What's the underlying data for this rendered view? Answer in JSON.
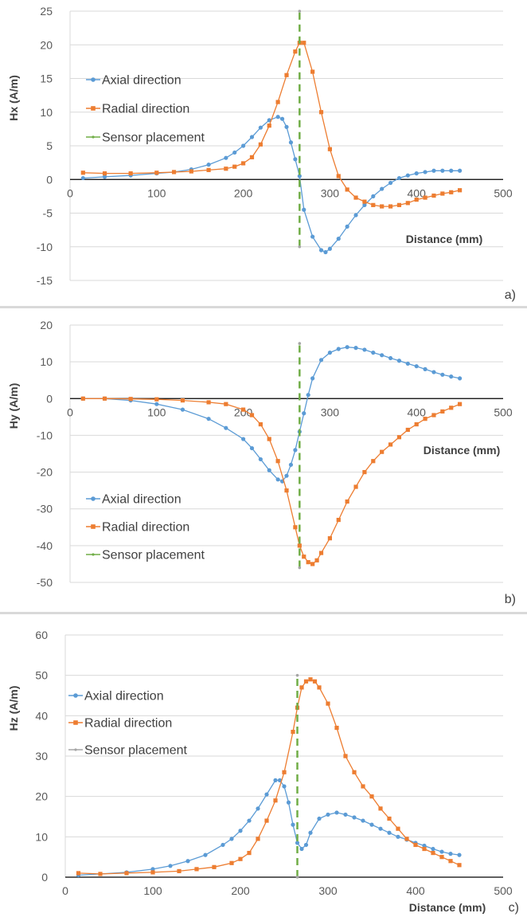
{
  "chart_data": [
    {
      "type": "line",
      "panel_label": "a)",
      "ylabel": "Hx (A/m)",
      "xlabel": "Distance (mm)",
      "xlim": [
        0,
        500
      ],
      "ylim": [
        -15,
        25
      ],
      "xticks": [
        0,
        100,
        200,
        300,
        400,
        500
      ],
      "yticks": [
        -15,
        -10,
        -5,
        0,
        5,
        10,
        15,
        20,
        25
      ],
      "grid": "horizontal",
      "legend": "left",
      "colors": {
        "axial": "#5b9bd5",
        "radial": "#ed7d31",
        "sensor": "#70ad47",
        "sensor_marker": "#a5a5a5"
      },
      "series": [
        {
          "name": "Axial direction",
          "marker": "circle",
          "x": [
            15,
            40,
            70,
            100,
            120,
            140,
            160,
            180,
            190,
            200,
            210,
            220,
            230,
            240,
            245,
            250,
            255,
            260,
            265,
            270,
            280,
            290,
            295,
            300,
            310,
            320,
            330,
            340,
            350,
            360,
            370,
            380,
            390,
            400,
            410,
            420,
            430,
            440,
            450
          ],
          "y": [
            0.2,
            0.4,
            0.6,
            0.9,
            1.1,
            1.5,
            2.2,
            3.2,
            4,
            5,
            6.3,
            7.7,
            8.8,
            9.3,
            9,
            7.8,
            5.5,
            3,
            0.5,
            -4.5,
            -8.5,
            -10.5,
            -10.8,
            -10.3,
            -8.8,
            -7,
            -5.3,
            -3.8,
            -2.5,
            -1.4,
            -0.5,
            0.2,
            0.6,
            0.9,
            1.1,
            1.3,
            1.3,
            1.3,
            1.3
          ]
        },
        {
          "name": "Radial direction",
          "marker": "square",
          "x": [
            15,
            40,
            70,
            100,
            120,
            140,
            160,
            180,
            190,
            200,
            210,
            220,
            230,
            240,
            250,
            260,
            265,
            270,
            280,
            290,
            300,
            310,
            320,
            330,
            340,
            350,
            360,
            370,
            380,
            390,
            400,
            410,
            420,
            430,
            440,
            450
          ],
          "y": [
            1,
            0.9,
            0.9,
            1,
            1.1,
            1.2,
            1.4,
            1.6,
            1.9,
            2.4,
            3.3,
            5.2,
            8,
            11.5,
            15.5,
            19,
            20.3,
            20.3,
            16,
            10,
            4.5,
            0.5,
            -1.5,
            -2.7,
            -3.3,
            -3.8,
            -4,
            -4,
            -3.8,
            -3.5,
            -3,
            -2.7,
            -2.4,
            -2.1,
            -1.9,
            -1.6
          ]
        },
        {
          "name": "Sensor placement",
          "style": "dashed-vertical",
          "x": [
            265,
            265
          ],
          "y": [
            -10,
            25
          ]
        }
      ]
    },
    {
      "type": "line",
      "panel_label": "b)",
      "ylabel": "Hy (A/m)",
      "xlabel": "Distance (mm)",
      "xlim": [
        0,
        500
      ],
      "ylim": [
        -50,
        20
      ],
      "xticks": [
        0,
        100,
        200,
        300,
        400,
        500
      ],
      "yticks": [
        -50,
        -40,
        -30,
        -20,
        -10,
        0,
        10,
        20
      ],
      "grid": "horizontal",
      "legend": "bottom-left",
      "colors": {
        "axial": "#5b9bd5",
        "radial": "#ed7d31",
        "sensor": "#70ad47",
        "sensor_marker": "#a5a5a5"
      },
      "series": [
        {
          "name": "Axial direction",
          "marker": "circle",
          "x": [
            15,
            40,
            70,
            100,
            130,
            160,
            180,
            200,
            210,
            220,
            230,
            240,
            245,
            250,
            255,
            260,
            265,
            270,
            275,
            280,
            290,
            300,
            310,
            320,
            330,
            340,
            350,
            360,
            370,
            380,
            390,
            400,
            410,
            420,
            430,
            440,
            450
          ],
          "y": [
            0,
            0,
            -0.5,
            -1.5,
            -3,
            -5.5,
            -8,
            -11,
            -13.5,
            -16.5,
            -19.5,
            -22,
            -22.5,
            -21,
            -18,
            -14,
            -9,
            -4,
            1,
            5.5,
            10.5,
            12.5,
            13.5,
            14,
            13.8,
            13.3,
            12.5,
            11.8,
            11,
            10.3,
            9.5,
            8.8,
            8,
            7.2,
            6.5,
            6,
            5.5
          ]
        },
        {
          "name": "Radial direction",
          "marker": "square",
          "x": [
            15,
            40,
            70,
            100,
            130,
            160,
            180,
            200,
            210,
            220,
            230,
            240,
            250,
            260,
            265,
            270,
            275,
            280,
            285,
            290,
            300,
            310,
            320,
            330,
            340,
            350,
            360,
            370,
            380,
            390,
            400,
            410,
            420,
            430,
            440,
            450
          ],
          "y": [
            0,
            0,
            -0.1,
            -0.2,
            -0.5,
            -1,
            -1.5,
            -3,
            -4.5,
            -7,
            -11,
            -17,
            -25,
            -35,
            -40,
            -43,
            -44.5,
            -45,
            -44,
            -42,
            -38,
            -33,
            -28,
            -24,
            -20,
            -17,
            -14.5,
            -12.5,
            -10.5,
            -8.5,
            -7,
            -5.5,
            -4.5,
            -3.5,
            -2.5,
            -1.5
          ]
        },
        {
          "name": "Sensor placement",
          "style": "dashed-vertical",
          "x": [
            265,
            265
          ],
          "y": [
            -46,
            15
          ]
        }
      ]
    },
    {
      "type": "line",
      "panel_label": "c)",
      "ylabel": "Hz (A/m)",
      "xlabel": "Distance (mm)",
      "xlim": [
        0,
        500
      ],
      "ylim": [
        0,
        60
      ],
      "xticks": [
        0,
        100,
        200,
        300,
        400,
        500
      ],
      "yticks": [
        0,
        10,
        20,
        30,
        40,
        50,
        60
      ],
      "grid": "horizontal",
      "legend": "top-left",
      "colors": {
        "axial": "#5b9bd5",
        "radial": "#ed7d31",
        "sensor": "#70ad47",
        "sensor_marker": "#a5a5a5"
      },
      "series": [
        {
          "name": "Axial direction",
          "marker": "circle",
          "x": [
            15,
            40,
            70,
            100,
            120,
            140,
            160,
            180,
            190,
            200,
            210,
            220,
            230,
            240,
            245,
            250,
            255,
            260,
            265,
            270,
            275,
            280,
            290,
            300,
            310,
            320,
            330,
            340,
            350,
            360,
            370,
            380,
            390,
            400,
            410,
            420,
            430,
            440,
            450
          ],
          "y": [
            0.5,
            0.8,
            1.2,
            2,
            2.8,
            4,
            5.5,
            8,
            9.5,
            11.5,
            14,
            17,
            20.5,
            24,
            24,
            22.5,
            18.5,
            13,
            8.5,
            7,
            8,
            11,
            14.5,
            15.5,
            16,
            15.5,
            14.8,
            14,
            13,
            12,
            11,
            10,
            9.3,
            8.5,
            7.8,
            7,
            6.3,
            5.8,
            5.5
          ]
        },
        {
          "name": "Radial direction",
          "marker": "square",
          "x": [
            15,
            40,
            70,
            100,
            130,
            150,
            170,
            190,
            200,
            210,
            220,
            230,
            240,
            250,
            260,
            265,
            270,
            275,
            280,
            285,
            290,
            300,
            310,
            320,
            330,
            340,
            350,
            360,
            370,
            380,
            390,
            400,
            410,
            420,
            430,
            440,
            450
          ],
          "y": [
            1,
            0.8,
            1,
            1.2,
            1.5,
            2,
            2.5,
            3.5,
            4.5,
            6,
            9.5,
            14,
            19,
            26,
            36,
            42,
            47,
            48.5,
            49,
            48.5,
            47,
            43,
            37,
            30,
            26,
            22.5,
            20,
            17,
            14.5,
            12,
            9.5,
            8,
            7,
            6,
            5,
            4,
            3
          ]
        },
        {
          "name": "Sensor placement",
          "style": "dashed-vertical",
          "x": [
            265,
            265
          ],
          "y": [
            0,
            50
          ]
        }
      ]
    }
  ]
}
